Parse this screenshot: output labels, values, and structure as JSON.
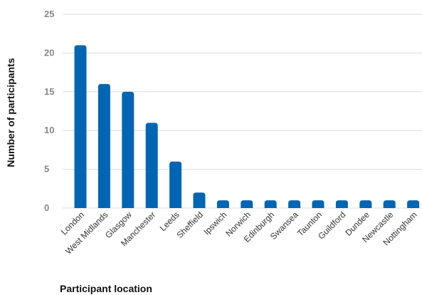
{
  "chart_data": {
    "type": "bar",
    "title": "",
    "xlabel": "Participant location",
    "ylabel": "Number of participants",
    "ylim": [
      0,
      25
    ],
    "yticks": [
      0,
      5,
      10,
      15,
      20,
      25
    ],
    "grid": true,
    "bar_color": "#0066b3",
    "categories": [
      "London",
      "West Midlands",
      "Glasgow",
      "Manchester",
      "Leeds",
      "Sheffield",
      "Ipswich",
      "Norwich",
      "Edinburgh",
      "Swansea",
      "Taunton",
      "Guildford",
      "Dundee",
      "Newcastle",
      "Nottingham"
    ],
    "values": [
      21,
      16,
      15,
      11,
      6,
      2,
      1,
      1,
      1,
      1,
      1,
      1,
      1,
      1,
      1
    ]
  }
}
